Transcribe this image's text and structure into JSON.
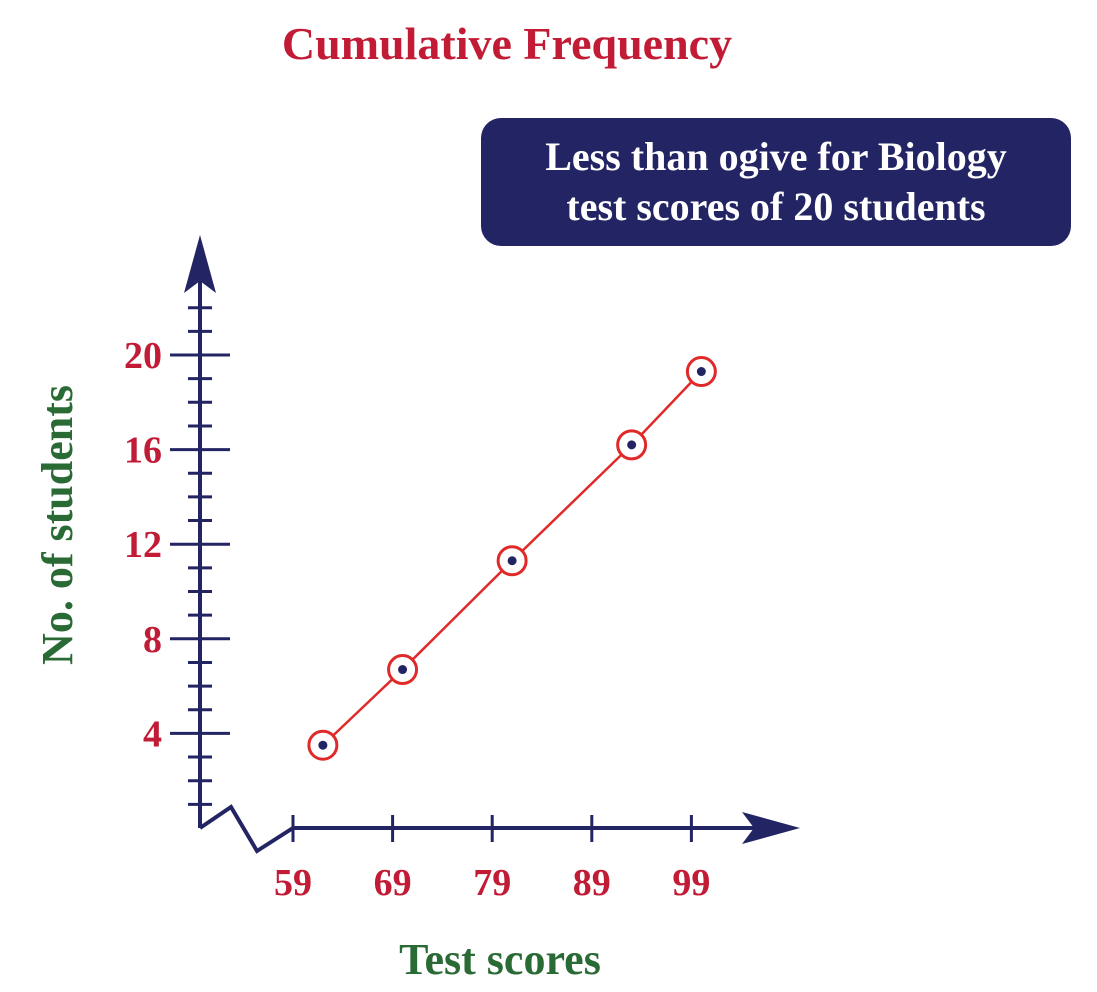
{
  "chart_data": {
    "type": "line",
    "title": "Cumulative Frequency",
    "legend": [
      "Less than ogive for Biology",
      "test scores of 20 students"
    ],
    "xlabel": "Test scores",
    "ylabel": "No. of students",
    "x_ticks": [
      59,
      69,
      79,
      89,
      99
    ],
    "y_ticks": [
      4,
      8,
      12,
      16,
      20
    ],
    "xlim": [
      59,
      109
    ],
    "ylim": [
      0,
      21
    ],
    "axis_break": "x",
    "series": [
      {
        "x": [
          62,
          70,
          81,
          93,
          100
        ],
        "y": [
          3.5,
          6.7,
          11.3,
          16.2,
          19.3
        ]
      }
    ],
    "colors": {
      "title": "#c11b36",
      "axis": "#232463",
      "line": "#e02a2a",
      "marker_dot": "#232463",
      "axis_title": "#2a6a35",
      "legend_bg": "#232463"
    }
  }
}
